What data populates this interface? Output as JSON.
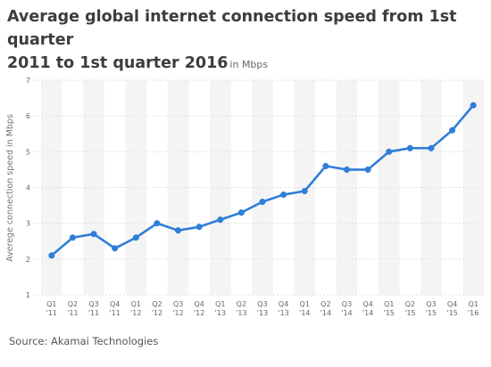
{
  "header": {
    "title_line1": "Average global internet connection speed from 1st quarter",
    "title_line2": "2011 to 1st quarter 2016",
    "unit": "in Mbps"
  },
  "footer": {
    "source": "Source: Akamai Technologies"
  },
  "chart_data": {
    "type": "line",
    "title": "Average global internet connection speed from 1st quarter 2011 to 1st quarter 2016",
    "subtitle": "in Mbps",
    "ylabel": "Averege connection speed in Mbps",
    "xlabel": "",
    "ylim": [
      1,
      7
    ],
    "yticks": [
      "1",
      "2",
      "3",
      "4",
      "5",
      "6",
      "7"
    ],
    "grid": true,
    "line_color": "#2f7ed8",
    "categories": [
      {
        "q": "Q1",
        "y": "'11"
      },
      {
        "q": "Q2",
        "y": "'11"
      },
      {
        "q": "Q3",
        "y": "'11"
      },
      {
        "q": "Q4",
        "y": "'11"
      },
      {
        "q": "Q1",
        "y": "'12"
      },
      {
        "q": "Q2",
        "y": "'12"
      },
      {
        "q": "Q3",
        "y": "'12"
      },
      {
        "q": "Q4",
        "y": "'12"
      },
      {
        "q": "Q1",
        "y": "'13"
      },
      {
        "q": "Q2",
        "y": "'13"
      },
      {
        "q": "Q3",
        "y": "'13"
      },
      {
        "q": "Q4",
        "y": "'13"
      },
      {
        "q": "Q1",
        "y": "'14"
      },
      {
        "q": "Q2",
        "y": "'14"
      },
      {
        "q": "Q3",
        "y": "'14"
      },
      {
        "q": "Q4",
        "y": "'14"
      },
      {
        "q": "Q1",
        "y": "'15"
      },
      {
        "q": "Q2",
        "y": "'15"
      },
      {
        "q": "Q3",
        "y": "'15"
      },
      {
        "q": "Q4",
        "y": "'15"
      },
      {
        "q": "Q1",
        "y": "'16"
      }
    ],
    "values": [
      2.1,
      2.6,
      2.7,
      2.3,
      2.6,
      3.0,
      2.8,
      2.9,
      3.1,
      3.3,
      3.6,
      3.8,
      3.9,
      4.6,
      4.5,
      4.5,
      5.0,
      5.1,
      5.1,
      5.6,
      6.3
    ]
  }
}
